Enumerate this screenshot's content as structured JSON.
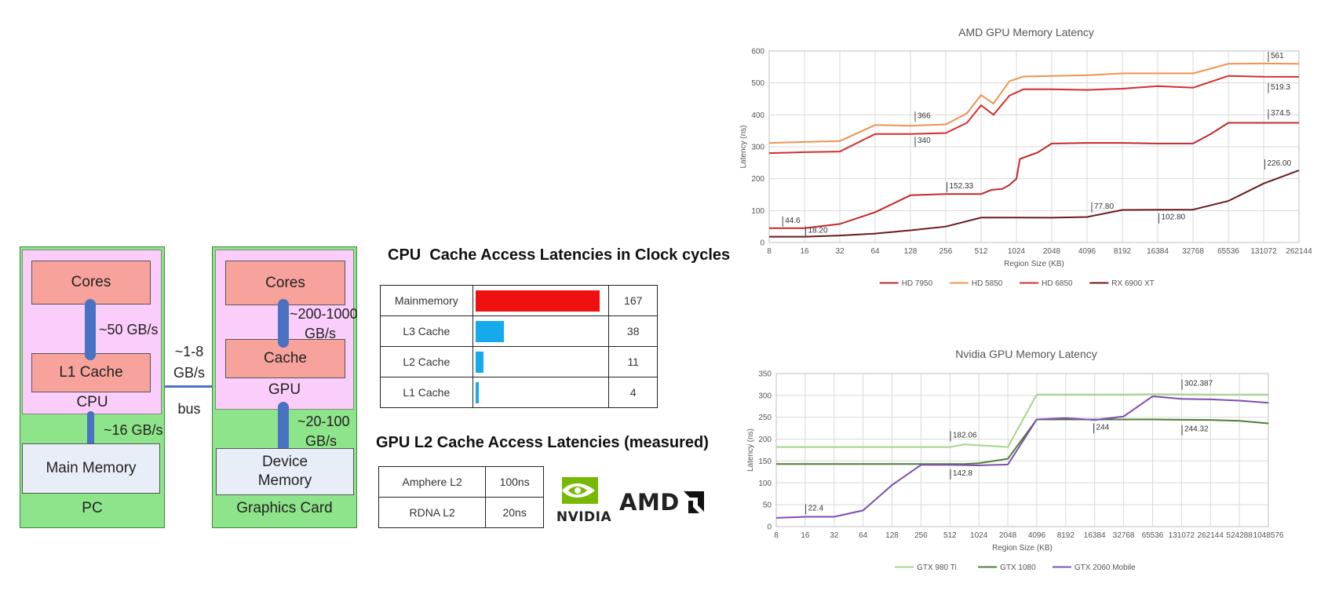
{
  "diagram": {
    "pc": {
      "label": "PC",
      "cpu_label": "CPU",
      "cores_label": "Cores",
      "l1_label": "L1 Cache",
      "main_memory_label": "Main Memory",
      "core_l1_bandwidth": "~50 GB/s",
      "cpu_mem_bandwidth": "~16 GB/s"
    },
    "bus": {
      "bandwidth_line1": "~1-8",
      "bandwidth_line2": "GB/s",
      "label": "bus"
    },
    "gpu_card": {
      "label": "Graphics Card",
      "gpu_label": "GPU",
      "cores_label": "Cores",
      "cache_label": "Cache",
      "device_memory_line1": "Device",
      "device_memory_line2": "Memory",
      "core_cache_bw_line1": "~200-1000",
      "core_cache_bw_line2": "GB/s",
      "gpu_mem_bw_line1": "~20-100",
      "gpu_mem_bw_line2": "GB/s"
    }
  },
  "colors": {
    "red": "#f01010",
    "blue": "#14aaeb",
    "nvidia_green": "#76b900"
  },
  "logos": {
    "nvidia": "NVIDIA",
    "amd": "AMD"
  },
  "chart_data": [
    {
      "type": "table",
      "title": "CPU  Cache Access Latencies in Clock cycles",
      "rows": [
        {
          "name": "Mainmemory",
          "value": 167,
          "color": "#f01010"
        },
        {
          "name": "L3 Cache",
          "value": 38,
          "color": "#14aaeb"
        },
        {
          "name": "L2 Cache",
          "value": 11,
          "color": "#14aaeb"
        },
        {
          "name": "L1 Cache",
          "value": 4,
          "color": "#14aaeb"
        }
      ]
    },
    {
      "type": "table",
      "title": "GPU L2 Cache Access Latencies (measured)",
      "rows": [
        {
          "name": "Amphere L2",
          "value": "100ns"
        },
        {
          "name": "RDNA L2",
          "value": "20ns"
        }
      ]
    },
    {
      "type": "line",
      "title": "AMD GPU Memory Latency",
      "xlabel": "Region Size (KB)",
      "ylabel": "Latency (ns)",
      "ylim": [
        0,
        600
      ],
      "yticks": [
        0,
        100,
        200,
        300,
        400,
        500,
        600
      ],
      "categories": [
        "8",
        "16",
        "32",
        "64",
        "128",
        "256",
        "512",
        "1024",
        "2048",
        "4096",
        "8192",
        "16384",
        "32768",
        "65536",
        "131072",
        "262144"
      ],
      "grid": true,
      "legend_position": "bottom",
      "series": [
        {
          "name": "HD 7950",
          "color": "#c0282c",
          "points": [
            [
              0,
              45
            ],
            [
              1,
              45
            ],
            [
              2,
              58
            ],
            [
              3,
              95
            ],
            [
              4,
              148
            ],
            [
              5,
              152
            ],
            [
              6,
              152
            ],
            [
              6.3,
              165
            ],
            [
              6.6,
              168
            ],
            [
              6.8,
              180
            ],
            [
              7,
              200
            ],
            [
              7.1,
              262
            ],
            [
              7.6,
              282
            ],
            [
              8,
              310
            ],
            [
              9,
              312
            ],
            [
              10,
              312
            ],
            [
              11,
              310
            ],
            [
              12,
              310
            ],
            [
              12.5,
              340
            ],
            [
              13,
              375
            ],
            [
              14,
              375
            ],
            [
              15,
              375
            ]
          ]
        },
        {
          "name": "HD 5850",
          "color": "#ee9352",
          "points": [
            [
              0,
              312
            ],
            [
              1,
              315
            ],
            [
              2,
              318
            ],
            [
              3,
              368
            ],
            [
              4,
              366
            ],
            [
              5,
              370
            ],
            [
              5.6,
              405
            ],
            [
              6,
              462
            ],
            [
              6.35,
              435
            ],
            [
              6.8,
              505
            ],
            [
              7.2,
              520
            ],
            [
              8,
              522
            ],
            [
              9,
              524
            ],
            [
              10,
              530
            ],
            [
              11,
              530
            ],
            [
              12,
              530
            ],
            [
              13,
              560
            ],
            [
              14,
              561
            ],
            [
              15,
              560
            ]
          ]
        },
        {
          "name": "HD 6850",
          "color": "#d62b2b",
          "points": [
            [
              0,
              280
            ],
            [
              1,
              283
            ],
            [
              2,
              285
            ],
            [
              3,
              340
            ],
            [
              4,
              340
            ],
            [
              5,
              343
            ],
            [
              5.6,
              375
            ],
            [
              6,
              430
            ],
            [
              6.35,
              400
            ],
            [
              6.8,
              460
            ],
            [
              7.2,
              480
            ],
            [
              8,
              480
            ],
            [
              9,
              478
            ],
            [
              10,
              482
            ],
            [
              11,
              490
            ],
            [
              12,
              485
            ],
            [
              13,
              522
            ],
            [
              14,
              519.3
            ],
            [
              15,
              519
            ]
          ]
        },
        {
          "name": "RX 6900 XT",
          "color": "#6b1a1a",
          "points": [
            [
              0,
              18.2
            ],
            [
              1,
              18.2
            ],
            [
              2,
              22
            ],
            [
              3,
              28
            ],
            [
              4,
              38
            ],
            [
              5,
              50
            ],
            [
              6,
              78
            ],
            [
              7,
              78
            ],
            [
              8,
              77.8
            ],
            [
              9,
              80
            ],
            [
              10,
              102
            ],
            [
              11,
              102.8
            ],
            [
              12,
              103
            ],
            [
              13,
              130
            ],
            [
              14,
              185
            ],
            [
              15,
              226
            ]
          ]
        }
      ],
      "annotations": [
        {
          "text": "44.6",
          "x": 0.45,
          "y": 62
        },
        {
          "text": "18.20",
          "x": 1.1,
          "y": 31
        },
        {
          "text": "152.33",
          "x": 5.1,
          "y": 170
        },
        {
          "text": "77.80",
          "x": 9.2,
          "y": 106
        },
        {
          "text": "102.80",
          "x": 11.1,
          "y": 72
        },
        {
          "text": "366",
          "x": 4.2,
          "y": 390
        },
        {
          "text": "340",
          "x": 4.2,
          "y": 312
        },
        {
          "text": "561",
          "x": 14.2,
          "y": 578
        },
        {
          "text": "519.3",
          "x": 14.2,
          "y": 480
        },
        {
          "text": "374.5",
          "x": 14.2,
          "y": 398
        },
        {
          "text": "226.00",
          "x": 14.1,
          "y": 241
        }
      ]
    },
    {
      "type": "line",
      "title": "Nvidia GPU Memory Latency",
      "xlabel": "Region Size (KB)",
      "ylabel": "Latency (ns)",
      "ylim": [
        0,
        350
      ],
      "yticks": [
        0,
        50,
        100,
        150,
        200,
        250,
        300,
        350
      ],
      "categories": [
        "8",
        "16",
        "32",
        "64",
        "128",
        "256",
        "512",
        "1024",
        "2048",
        "4096",
        "8192",
        "16384",
        "32768",
        "65536",
        "131072",
        "262144",
        "524288",
        "1048576"
      ],
      "grid": true,
      "legend_position": "bottom",
      "series": [
        {
          "name": "GTX 980 Ti",
          "color": "#a6d48a",
          "points": [
            [
              0,
              182
            ],
            [
              1,
              182
            ],
            [
              2,
              182
            ],
            [
              3,
              182
            ],
            [
              4,
              182
            ],
            [
              5,
              182
            ],
            [
              6,
              182
            ],
            [
              6.5,
              188
            ],
            [
              7,
              186
            ],
            [
              8,
              182
            ],
            [
              9,
              302
            ],
            [
              10,
              302
            ],
            [
              11,
              302
            ],
            [
              12,
              302
            ],
            [
              13,
              303
            ],
            [
              14,
              302.387
            ],
            [
              15,
              302
            ],
            [
              16,
              302
            ],
            [
              17,
              302
            ]
          ]
        },
        {
          "name": "GTX 1080",
          "color": "#4e7d35",
          "points": [
            [
              0,
              143
            ],
            [
              1,
              143
            ],
            [
              2,
              143
            ],
            [
              3,
              143
            ],
            [
              4,
              143
            ],
            [
              5,
              143
            ],
            [
              6,
              143
            ],
            [
              6.5,
              143
            ],
            [
              7,
              145
            ],
            [
              8,
              155
            ],
            [
              9,
              245
            ],
            [
              10,
              245
            ],
            [
              11,
              245
            ],
            [
              12,
              245
            ],
            [
              13,
              245
            ],
            [
              14,
              244.32
            ],
            [
              15,
              244
            ],
            [
              16,
              242
            ],
            [
              17,
              236
            ]
          ]
        },
        {
          "name": "GTX 2060 Mobile",
          "color": "#7e4fb0",
          "points": [
            [
              0,
              20
            ],
            [
              1,
              22.4
            ],
            [
              2,
              22.4
            ],
            [
              3,
              37
            ],
            [
              4,
              95
            ],
            [
              5,
              141
            ],
            [
              6,
              141
            ],
            [
              7,
              140
            ],
            [
              8,
              142
            ],
            [
              9,
              245
            ],
            [
              10,
              248
            ],
            [
              11,
              244
            ],
            [
              12,
              252
            ],
            [
              13,
              298
            ],
            [
              14,
              292
            ],
            [
              15,
              291
            ],
            [
              16,
              288
            ],
            [
              17,
              283
            ]
          ]
        }
      ],
      "annotations": [
        {
          "text": "182.06",
          "x": 6.1,
          "y": 204
        },
        {
          "text": "142.8",
          "x": 6.1,
          "y": 117
        },
        {
          "text": "22.4",
          "x": 1.1,
          "y": 37
        },
        {
          "text": "244",
          "x": 11.05,
          "y": 222
        },
        {
          "text": "302.387",
          "x": 14.1,
          "y": 322
        },
        {
          "text": "244.32",
          "x": 14.1,
          "y": 218
        }
      ]
    }
  ]
}
